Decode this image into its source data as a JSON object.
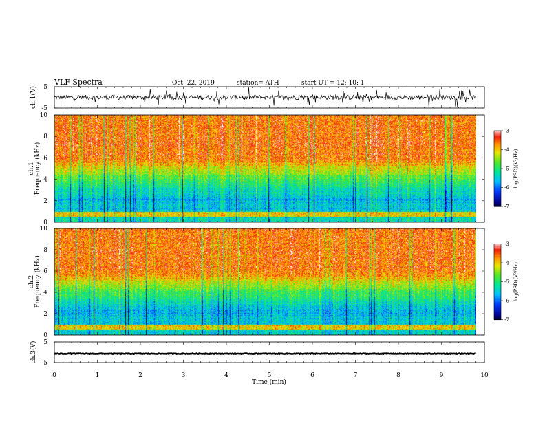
{
  "header": {
    "title": "VLF  Spectra",
    "date": "Oct. 22, 2019",
    "station": "station= ATH",
    "start_ut": "start  UT  =    12: 10: 1"
  },
  "chart_data": [
    {
      "type": "line",
      "name": "ch1-waveform",
      "ylabel": "ch.1(V)",
      "ylim": [
        -5,
        5
      ],
      "yticks": [
        "5",
        "-5"
      ],
      "xlim": [
        0,
        10
      ],
      "baseline": 0,
      "duration_min": 9.8
    },
    {
      "type": "heatmap",
      "name": "ch1-spectrogram",
      "ylabel": "ch.1\nFrequency  (kHz)",
      "ylabel_lines": [
        "ch.1",
        "Frequency  (kHz)"
      ],
      "ylim": [
        0,
        10
      ],
      "yticks": [
        "0",
        "2",
        "4",
        "6",
        "8",
        "10"
      ],
      "xlim": [
        0,
        10
      ],
      "duration_min": 9.8,
      "colorbar": {
        "label": "log(PSD)(V²/Hz)",
        "range": [
          -7,
          -3
        ],
        "ticks": [
          "-3",
          "-4",
          "-5",
          "-6",
          "-7"
        ]
      }
    },
    {
      "type": "heatmap",
      "name": "ch2-spectrogram",
      "ylabel": "ch.2\nFrequency  (kHz)",
      "ylabel_lines": [
        "ch.2",
        "Frequency  (kHz)"
      ],
      "ylim": [
        0,
        10
      ],
      "yticks": [
        "0",
        "2",
        "4",
        "6",
        "8",
        "10"
      ],
      "xlim": [
        0,
        10
      ],
      "duration_min": 9.8,
      "colorbar": {
        "label": "log(PSD)(V²/Hz)",
        "range": [
          -7,
          -3
        ],
        "ticks": [
          "-3",
          "-4",
          "-5",
          "-6",
          "-7"
        ]
      }
    },
    {
      "type": "line",
      "name": "ch3-waveform",
      "ylabel": "ch.3(V)",
      "ylim": [
        -5,
        5
      ],
      "yticks": [
        "5",
        "-5"
      ],
      "xlim": [
        0,
        10
      ],
      "baseline": -0.7,
      "duration_min": 9.8
    }
  ],
  "xaxis": {
    "label": "Time  (min)",
    "ticks": [
      "0",
      "1",
      "2",
      "3",
      "4",
      "5",
      "6",
      "7",
      "8",
      "9",
      "10"
    ]
  }
}
